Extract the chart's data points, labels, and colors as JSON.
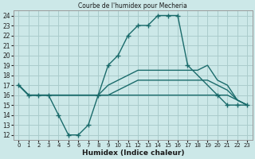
{
  "title": "Courbe de l'humidex pour Mecheria",
  "xlabel": "Humidex (Indice chaleur)",
  "bg_color": "#cce8e8",
  "grid_color": "#aacccc",
  "line_color": "#1a6b6b",
  "xlim": [
    -0.5,
    23.5
  ],
  "ylim": [
    11.5,
    24.5
  ],
  "xticks": [
    0,
    1,
    2,
    3,
    4,
    5,
    6,
    7,
    8,
    9,
    10,
    11,
    12,
    13,
    14,
    15,
    16,
    17,
    18,
    19,
    20,
    21,
    22,
    23
  ],
  "yticks": [
    12,
    13,
    14,
    15,
    16,
    17,
    18,
    19,
    20,
    21,
    22,
    23,
    24
  ],
  "lines": [
    {
      "x": [
        0,
        1,
        2,
        3,
        4,
        5,
        6,
        7,
        8,
        9,
        10,
        11,
        12,
        13,
        14,
        15,
        16,
        17,
        20,
        21,
        22,
        23
      ],
      "y": [
        17,
        16,
        16,
        16,
        14,
        12,
        12,
        13,
        16,
        19,
        20,
        22,
        23,
        23,
        24,
        24,
        24,
        19,
        16,
        15,
        15,
        15
      ],
      "has_markers": true
    },
    {
      "x": [
        0,
        1,
        2,
        3,
        4,
        5,
        6,
        7,
        8,
        9,
        10,
        11,
        12,
        13,
        14,
        15,
        16,
        17,
        18,
        19,
        20,
        21,
        22,
        23
      ],
      "y": [
        17,
        16,
        16,
        16,
        16,
        16,
        16,
        16,
        16,
        17,
        17.5,
        18,
        18.5,
        18.5,
        18.5,
        18.5,
        18.5,
        18.5,
        18.5,
        19,
        17.5,
        17,
        15.5,
        15
      ],
      "has_markers": false
    },
    {
      "x": [
        0,
        1,
        2,
        3,
        4,
        5,
        6,
        7,
        8,
        9,
        10,
        11,
        12,
        13,
        14,
        15,
        16,
        17,
        18,
        19,
        20,
        21,
        22,
        23
      ],
      "y": [
        17,
        16,
        16,
        16,
        16,
        16,
        16,
        16,
        16,
        16,
        16.5,
        17,
        17.5,
        17.5,
        17.5,
        17.5,
        17.5,
        17.5,
        17.5,
        17.5,
        17,
        16.5,
        15.5,
        15
      ],
      "has_markers": false
    },
    {
      "x": [
        0,
        1,
        2,
        3,
        4,
        5,
        6,
        7,
        8,
        9,
        10,
        11,
        12,
        13,
        14,
        15,
        16,
        17,
        18,
        19,
        20,
        21,
        22,
        23
      ],
      "y": [
        17,
        16,
        16,
        16,
        16,
        16,
        16,
        16,
        16,
        16,
        16,
        16,
        16,
        16,
        16,
        16,
        16,
        16,
        16,
        16,
        16,
        16,
        15.5,
        15
      ],
      "has_markers": false
    }
  ]
}
